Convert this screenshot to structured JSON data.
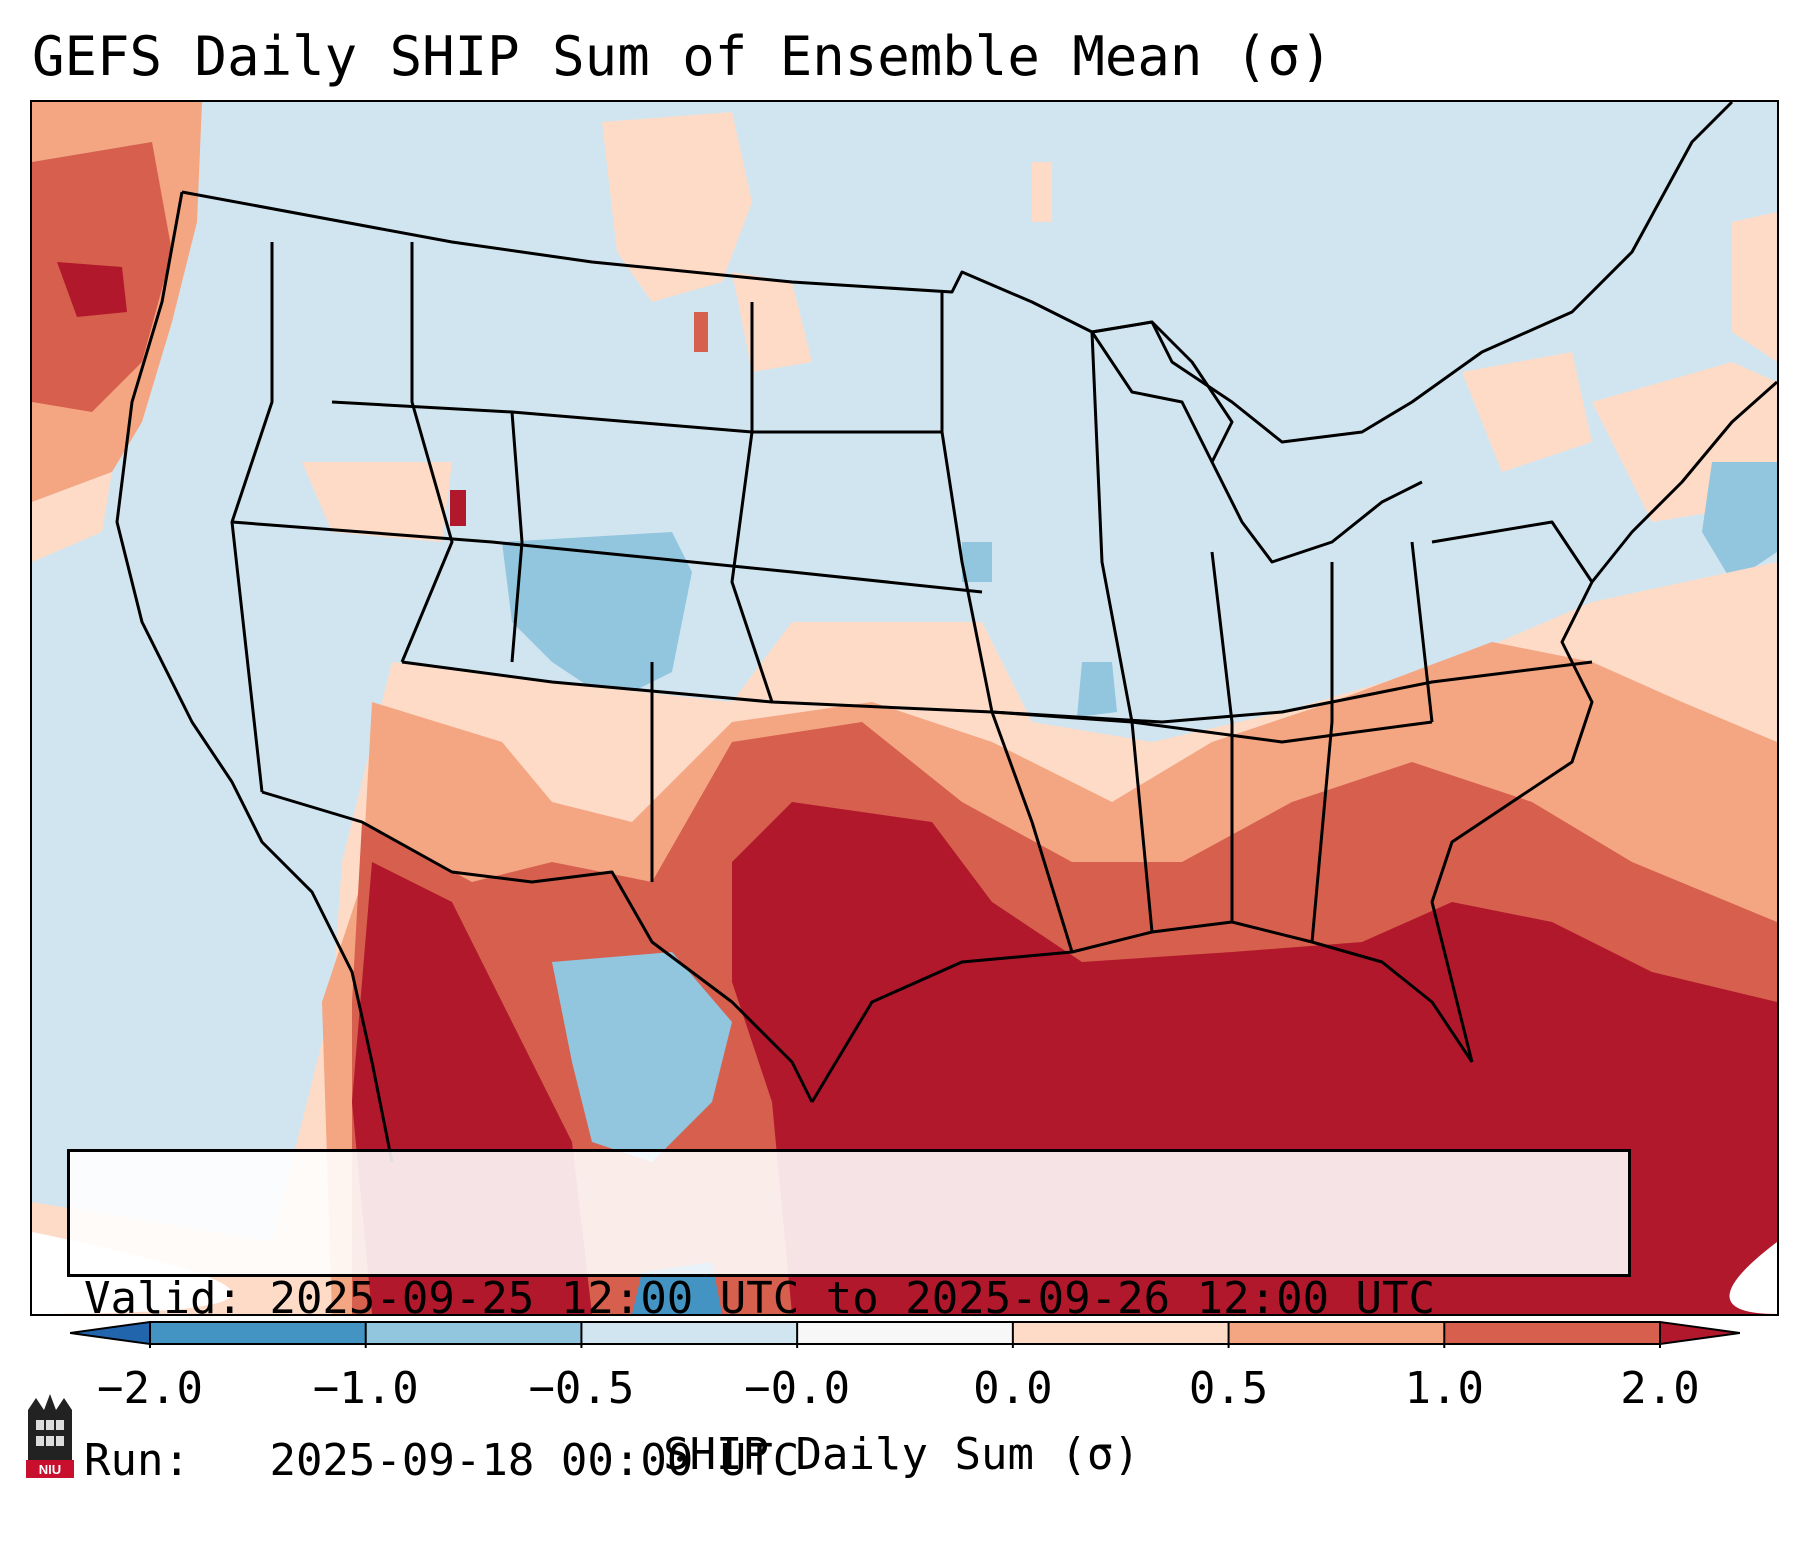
{
  "title": "GEFS Daily SHIP Sum of Ensemble Mean (σ)",
  "info": {
    "valid_label": "Valid:",
    "valid_value": "2025-09-25 12:00 UTC to 2025-09-26 12:00 UTC",
    "run_label": "Run:",
    "run_value": "2025-09-18 00:00 UTC"
  },
  "colorbar": {
    "label": "SHIP Daily Sum (σ)",
    "ticks": [
      "−2.0",
      "−1.0",
      "−0.5",
      "−0.0",
      "0.0",
      "0.5",
      "1.0",
      "2.0"
    ],
    "bins": [
      {
        "range": "below -2.0",
        "color": "#2166ac"
      },
      {
        "range": "-2.0 to -1.0",
        "color": "#4393c3"
      },
      {
        "range": "-1.0 to -0.5",
        "color": "#92c5de"
      },
      {
        "range": "-0.5 to -0.0",
        "color": "#d1e5f0"
      },
      {
        "range": "-0.0 to 0.0",
        "color": "#f7f7f7"
      },
      {
        "range": "0.0 to 0.5",
        "color": "#fddbc7"
      },
      {
        "range": "0.5 to 1.0",
        "color": "#f4a582"
      },
      {
        "range": "1.0 to 2.0",
        "color": "#d6604d"
      },
      {
        "range": "2.0 to above",
        "color": "#b2182b"
      }
    ]
  },
  "logo": {
    "text": "NIU",
    "color": "#c8102e"
  },
  "map": {
    "region": "Contiguous United States",
    "background_color": "#d1e5f0",
    "border_color": "#000000"
  }
}
